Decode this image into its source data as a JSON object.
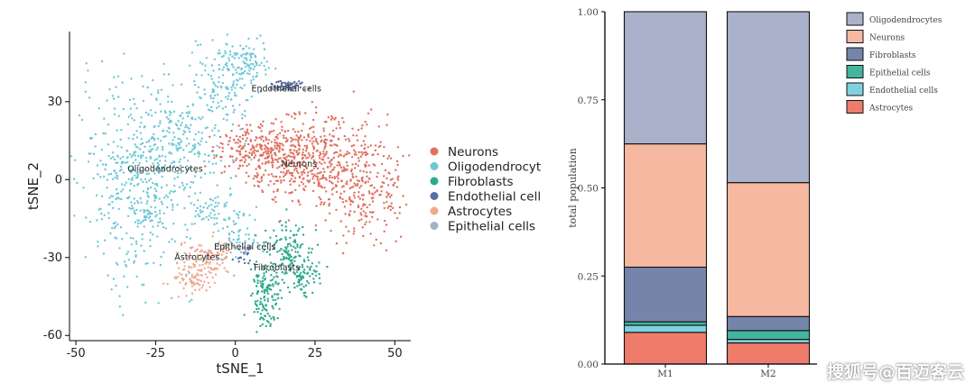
{
  "chart_data": [
    {
      "type": "scatter",
      "xlabel": "tSNE_1",
      "ylabel": "tSNE_2",
      "xlim": [
        -52,
        55
      ],
      "ylim": [
        -62,
        57
      ],
      "xticks": [
        -50,
        -25,
        0,
        25,
        50
      ],
      "yticks": [
        30,
        0,
        -30,
        -60
      ],
      "legend_position": "right",
      "series": [
        {
          "name": "Neurons",
          "color": "#e07060",
          "label_on_plot": "Neurons",
          "label_x": 20,
          "label_y": 5
        },
        {
          "name": "Oligodendrocytes",
          "color": "#6dc8d6",
          "label_on_plot": "Oligodendrocytes",
          "label_x": -22,
          "label_y": 3
        },
        {
          "name": "Fibroblasts",
          "color": "#2ea98d",
          "label_on_plot": "Fibroblasts",
          "label_x": 13,
          "label_y": -35
        },
        {
          "name": "Endothelial cells",
          "color": "#5a6fa0",
          "label_on_plot": "Endothelial cells",
          "label_x": 16,
          "label_y": 34
        },
        {
          "name": "Astrocytes",
          "color": "#eea98f",
          "label_on_plot": "Astrocytes",
          "label_x": -12,
          "label_y": -31
        },
        {
          "name": "Epithelial cells",
          "color": "#a5b0cc",
          "label_on_plot": "Epithelial cells",
          "label_x": 3,
          "label_y": -27
        }
      ]
    },
    {
      "type": "bar",
      "stacked": true,
      "ylabel": "total population",
      "ylim": [
        0,
        1
      ],
      "yticks": [
        "0.00",
        "0.25",
        "0.50",
        "0.75",
        "1.00"
      ],
      "categories": [
        "M1",
        "M2"
      ],
      "legend_position": "top-right",
      "series": [
        {
          "name": "Astrocytes",
          "color": "#ef7b6b",
          "values": [
            0.09,
            0.06
          ]
        },
        {
          "name": "Endothelial cells",
          "color": "#7fd1e0",
          "values": [
            0.02,
            0.01
          ]
        },
        {
          "name": "Epithelial cells",
          "color": "#42b59e",
          "values": [
            0.01,
            0.025
          ]
        },
        {
          "name": "Fibroblasts",
          "color": "#7584a9",
          "values": [
            0.155,
            0.04
          ]
        },
        {
          "name": "Neurons",
          "color": "#f7b8a2",
          "values": [
            0.35,
            0.38
          ]
        },
        {
          "name": "Oligodendrocytes",
          "color": "#a9b1cb",
          "values": [
            0.375,
            0.485
          ]
        }
      ],
      "legend_order": [
        "Oligodendrocytes",
        "Neurons",
        "Fibroblasts",
        "Epithelial cells",
        "Endothelial cells",
        "Astrocytes"
      ]
    }
  ],
  "watermark": "搜狐号@百迈客云"
}
